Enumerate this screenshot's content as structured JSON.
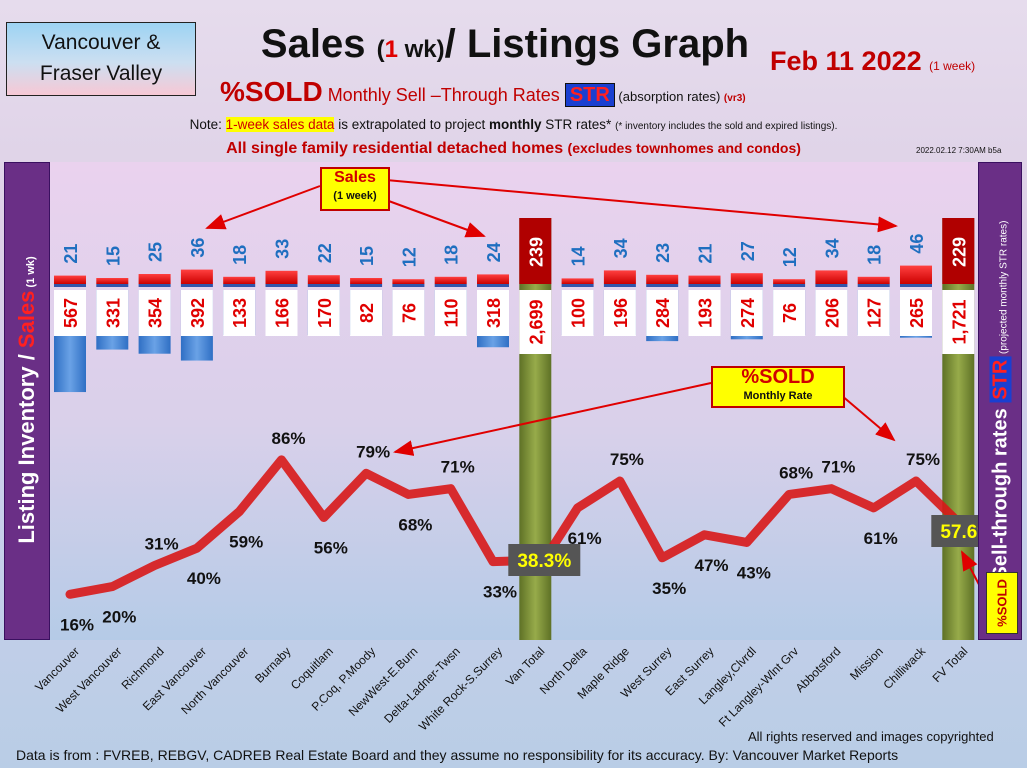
{
  "header": {
    "region_line1": "Vancouver &",
    "region_line2": "Fraser Valley",
    "title_prefix": "Sales ",
    "title_paren_open": "(",
    "title_one": "1",
    "title_wk": " wk)",
    "title_suffix": "/ Listings Graph",
    "date": "Feb  11  2022",
    "date_note": "(1 week)",
    "subtitle_sold": "%SOLD",
    "subtitle_rest": " Monthly Sell –Through Rates ",
    "subtitle_str": "STR",
    "subtitle_absorption": " (absorption rates) ",
    "subtitle_version": "(vr3)",
    "note_prefix": "Note: ",
    "note_highlight": "1-week sales data",
    "note_mid": " is extrapolated to project ",
    "note_bold": "monthly",
    "note_after": " STR rates* ",
    "note_small": "(* inventory includes the sold and expired listings).",
    "sfr_main": "All single family residential detached homes ",
    "sfr_small": "(excludes townhomes and condos)",
    "timestamp": "2022.02.12 7:30AM b5a"
  },
  "left_axis": {
    "part1": "Listing Inventory / ",
    "part2": "Sales",
    "part3": " (1 wk)"
  },
  "right_axis": {
    "part1": "Sell-through rates ",
    "part2": "STR",
    "part3": " (projected monthly STR rates)"
  },
  "callouts": {
    "sales_title": "Sales",
    "sales_sub": "(1 week)",
    "sold_title": "%SOLD",
    "sold_sub": "Monthly Rate",
    "sold_tag": "%SOLD"
  },
  "footer": {
    "rights": "All rights reserved and  images copyrighted",
    "source": "Data is from : FVREB, REBGV, CADREB Real Estate Board and they assume no responsibility for its accuracy. By: Vancouver Market Reports"
  },
  "colors": {
    "sales_bar": "#ff0000",
    "inventory_bar": "#4a86d4",
    "total_bar": "#7c8f38",
    "total_sales_box": "#b00000",
    "sold_line": "#d81818",
    "sales_label": "#1f6fc0",
    "inventory_label": "#e00000"
  },
  "chart_data": {
    "type": "bar",
    "categories": [
      "Vancouver",
      "West Vancouver",
      "Richmond",
      "East Vancouver",
      "North Vancouver",
      "Burnaby",
      "Coquitlam",
      "P.Coq, P.Moody",
      "NewWest-E.Burn",
      "Delta-Ladner-Twsn",
      "White Rock-S.Surrey",
      "Van Total",
      "North Delta",
      "Maple Ridge",
      "West Surrey",
      "East Surrey",
      "Langley,Clvrdl",
      "Ft Langley-Wlnt Grv",
      "Abbotsford",
      "Mission",
      "Chilliwack",
      "FV Total"
    ],
    "series": [
      {
        "name": "Sales",
        "values": [
          21,
          15,
          25,
          36,
          18,
          33,
          22,
          15,
          12,
          18,
          24,
          239,
          14,
          34,
          23,
          21,
          27,
          12,
          34,
          18,
          46,
          229
        ]
      },
      {
        "name": "Listing Inventory",
        "values": [
          567,
          331,
          354,
          392,
          133,
          166,
          170,
          82,
          76,
          110,
          318,
          2699,
          100,
          196,
          284,
          193,
          274,
          76,
          206,
          127,
          265,
          1721
        ]
      }
    ],
    "sold_pct": [
      16,
      20,
      31,
      40,
      59,
      86,
      56,
      79,
      68,
      71,
      33,
      null,
      61,
      75,
      35,
      47,
      43,
      68,
      71,
      61,
      75,
      null
    ],
    "totals": [
      {
        "category": "Van Total",
        "sold_pct": "38.3%"
      },
      {
        "category": "FV Total",
        "sold_pct": "57.6%"
      }
    ],
    "line_series_name": "%SOLD Monthly Rate"
  }
}
